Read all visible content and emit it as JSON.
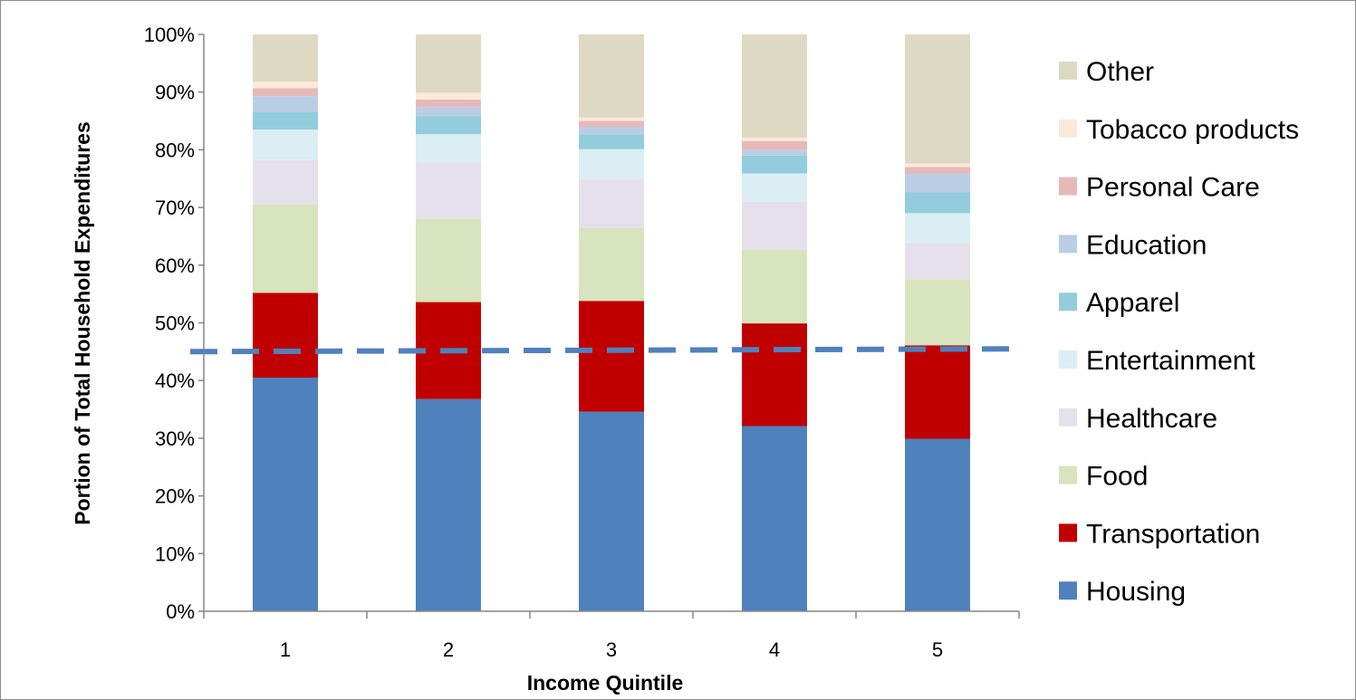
{
  "chart_data": {
    "type": "bar",
    "stacked": true,
    "title": "",
    "xlabel": "Income Quintile",
    "ylabel": "Portion of Total Household Expenditures",
    "categories": [
      "1",
      "2",
      "3",
      "4",
      "5"
    ],
    "ylim": [
      0,
      100
    ],
    "y_ticks": [
      "0%",
      "10%",
      "20%",
      "30%",
      "40%",
      "50%",
      "60%",
      "70%",
      "80%",
      "90%",
      "100%"
    ],
    "grid": false,
    "legend_position": "right",
    "reference_line": {
      "style": "dashed",
      "color": "#4f81bd",
      "start_value": 45.0,
      "end_value": 45.5
    },
    "series": [
      {
        "name": "Housing",
        "color": "#4f81bd",
        "values": [
          40.5,
          36.8,
          34.6,
          32.1,
          29.9
        ]
      },
      {
        "name": "Transportation",
        "color": "#c00000",
        "values": [
          14.7,
          16.8,
          19.2,
          17.8,
          16.2
        ]
      },
      {
        "name": "Food",
        "color": "#d7e4bd",
        "values": [
          15.3,
          14.4,
          12.6,
          12.8,
          11.4
        ]
      },
      {
        "name": "Healthcare",
        "color": "#e6e0ec",
        "values": [
          7.7,
          9.8,
          8.6,
          8.3,
          6.3
        ]
      },
      {
        "name": "Entertainment",
        "color": "#dbeef4",
        "values": [
          5.3,
          4.9,
          5.1,
          4.9,
          5.2
        ]
      },
      {
        "name": "Apparel",
        "color": "#93cddd",
        "values": [
          3.0,
          3.1,
          2.6,
          3.1,
          3.6
        ]
      },
      {
        "name": "Education",
        "color": "#b9cde5",
        "values": [
          2.8,
          1.6,
          1.3,
          1.0,
          3.3
        ]
      },
      {
        "name": "Personal Care",
        "color": "#e6b9b8",
        "values": [
          1.4,
          1.3,
          1.0,
          1.5,
          1.1
        ]
      },
      {
        "name": "Tobacco products",
        "color": "#fde9d9",
        "values": [
          1.1,
          1.2,
          0.6,
          0.6,
          0.6
        ]
      },
      {
        "name": "Other",
        "color": "#ddd9c3",
        "values": [
          8.2,
          10.1,
          14.4,
          17.9,
          22.4
        ]
      }
    ]
  }
}
